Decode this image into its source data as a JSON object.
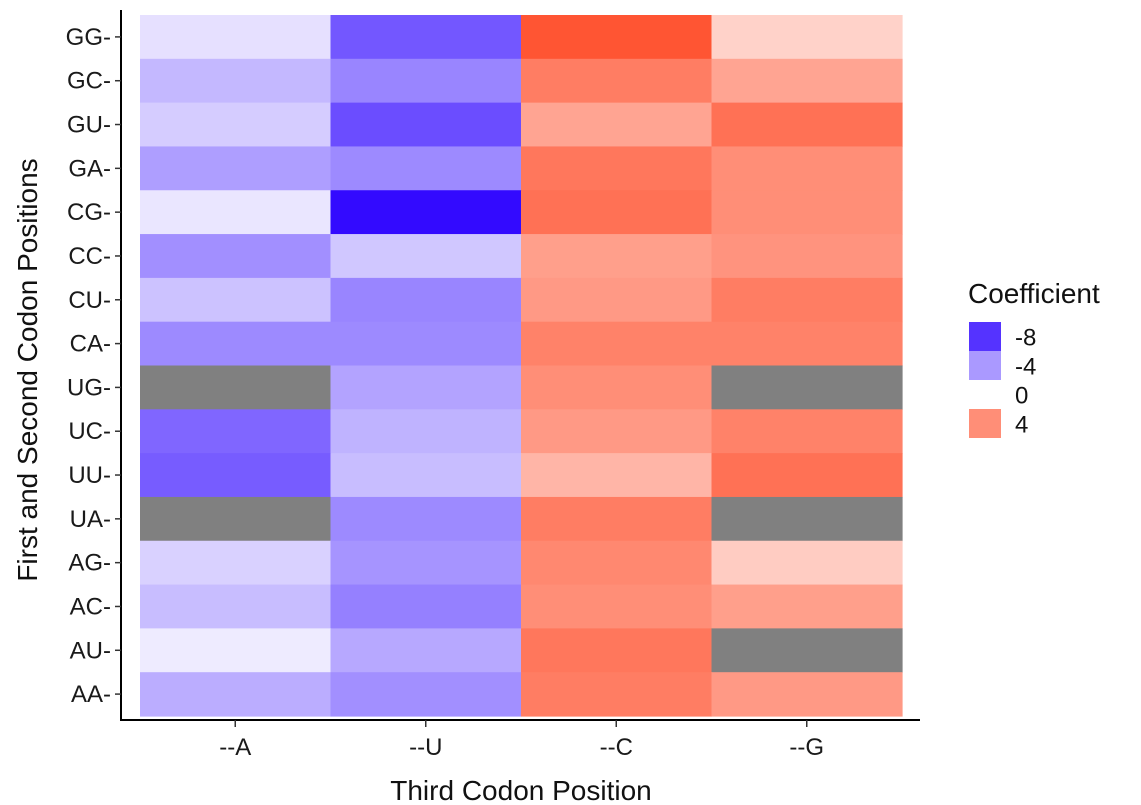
{
  "chart_data": {
    "type": "heatmap",
    "x_categories": [
      "--A",
      "--U",
      "--C",
      "--G"
    ],
    "y_categories": [
      "GG-",
      "GC-",
      "GU-",
      "GA-",
      "CG-",
      "CC-",
      "CU-",
      "CA-",
      "UG-",
      "UC-",
      "UU-",
      "UA-",
      "AG-",
      "AC-",
      "AU-",
      "AA-"
    ],
    "values": [
      [
        -1.2,
        -6.6,
        6.0,
        1.6
      ],
      [
        -2.8,
        -4.8,
        4.6,
        3.2
      ],
      [
        -2.0,
        -7.0,
        3.2,
        5.0
      ],
      [
        -3.8,
        -4.6,
        4.8,
        4.0
      ],
      [
        -1.0,
        -9.6,
        5.0,
        4.0
      ],
      [
        -4.4,
        -2.2,
        3.4,
        3.8
      ],
      [
        -2.4,
        -4.8,
        3.6,
        4.6
      ],
      [
        -4.6,
        -4.6,
        4.4,
        4.4
      ],
      [
        null,
        -3.6,
        4.0,
        null
      ],
      [
        -6.0,
        -3.0,
        3.6,
        4.4
      ],
      [
        -6.4,
        -2.6,
        2.6,
        5.0
      ],
      [
        null,
        -4.6,
        4.6,
        null
      ],
      [
        -1.8,
        -4.2,
        4.2,
        1.8
      ],
      [
        -2.6,
        -5.0,
        4.0,
        3.4
      ],
      [
        -0.8,
        -3.4,
        4.8,
        null
      ],
      [
        -3.2,
        -4.4,
        4.6,
        3.6
      ]
    ],
    "na_color": "#808080",
    "low_color": "#2b00ff",
    "mid_color": "#ffffff",
    "high_color": "#ff5533",
    "color_limits": [
      -10,
      6
    ],
    "xlabel": "Third Codon Position",
    "ylabel": "First and Second Codon Positions",
    "legend": {
      "title": "Coefficient",
      "entries": [
        {
          "label": "-8",
          "value": -8
        },
        {
          "label": "-4",
          "value": -4
        },
        {
          "label": "0",
          "value": 0
        },
        {
          "label": "4",
          "value": 4
        }
      ],
      "placement": "right"
    },
    "grid": false
  }
}
